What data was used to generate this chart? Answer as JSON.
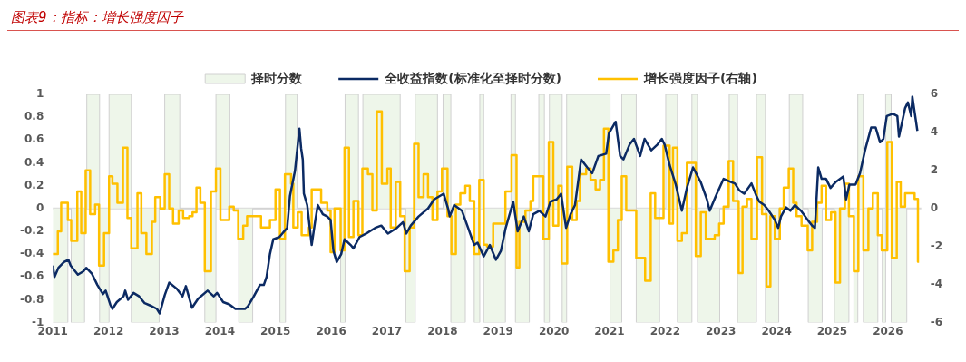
{
  "chart_data": {
    "type": "line",
    "title": "图表9：指标：增长强度因子",
    "xlim": [
      2011,
      2026.6
    ],
    "xticks": [
      2011,
      2012,
      2013,
      2014,
      2015,
      2016,
      2017,
      2018,
      2019,
      2020,
      2021,
      2022,
      2023,
      2024,
      2025,
      2026
    ],
    "ylim": [
      -1,
      1
    ],
    "yticks": [
      -1,
      -0.8,
      -0.6,
      -0.4,
      -0.2,
      0,
      0.2,
      0.4,
      0.6,
      0.8,
      1
    ],
    "y2lim": [
      -6,
      6
    ],
    "y2ticks": [
      -6,
      -4,
      -2,
      0,
      2,
      4,
      6
    ],
    "grid": false,
    "legend": "top",
    "ref_lines": [
      {
        "axis": "y",
        "value": 0,
        "color": "#d9d9d9"
      }
    ],
    "series": [
      {
        "name": "择时分数",
        "type": "area",
        "color": "#eef6ea",
        "x": [
          2011.0,
          2011.27,
          2011.33,
          2011.57,
          2011.61,
          2011.84,
          2012.01,
          2012.41,
          2012.91,
          2013.01,
          2013.28,
          2013.73,
          2013.93,
          2014.18,
          2014.34,
          2014.59,
          2015.08,
          2015.18,
          2015.39,
          2016.17,
          2016.25,
          2016.49,
          2016.57,
          2017.24,
          2017.34,
          2017.51,
          2017.91,
          2018.01,
          2018.15,
          2018.41,
          2018.57,
          2018.67,
          2018.74,
          2019.13,
          2019.23,
          2019.31,
          2019.56,
          2019.73,
          2019.83,
          2019.92,
          2020.15,
          2020.23,
          2021.01,
          2021.22,
          2021.48,
          2021.9,
          2022.01,
          2022.22,
          2022.48,
          2022.58,
          2022.98,
          2023.15,
          2023.3,
          2023.64,
          2023.8,
          2024.04,
          2024.23,
          2024.47,
          2024.57,
          2024.82,
          2025.04,
          2025.3,
          2025.39,
          2025.46,
          2025.56,
          2025.82,
          2025.9,
          2025.96,
          2026.06,
          2026.34
        ],
        "values": [
          -1,
          0,
          -1,
          0,
          1,
          -1,
          1,
          -1,
          0,
          1,
          0,
          -1,
          1,
          0,
          -1,
          0,
          -1,
          1,
          0,
          -1,
          1,
          0,
          1,
          0,
          -1,
          1,
          0,
          1,
          -1,
          0,
          -1,
          1,
          -1,
          0,
          1,
          -1,
          0,
          1,
          -1,
          1,
          -1,
          1,
          -1,
          1,
          -1,
          0,
          1,
          -1,
          1,
          -1,
          0,
          1,
          -1,
          1,
          -1,
          0,
          1,
          0,
          -1,
          0,
          -1,
          0,
          -1,
          1,
          -1,
          0,
          -1,
          1,
          -1,
          0
        ]
      },
      {
        "name": "全收益指数(标准化至择时分数)",
        "type": "line",
        "color": "#0b2a63",
        "x": [
          2011.0,
          2011.03,
          2011.1,
          2011.2,
          2011.28,
          2011.32,
          2011.45,
          2011.55,
          2011.6,
          2011.7,
          2011.8,
          2011.9,
          2011.95,
          2012.03,
          2012.07,
          2012.15,
          2012.27,
          2012.3,
          2012.35,
          2012.45,
          2012.55,
          2012.65,
          2012.75,
          2012.87,
          2012.92,
          2013.01,
          2013.09,
          2013.22,
          2013.33,
          2013.39,
          2013.47,
          2013.5,
          2013.61,
          2013.78,
          2013.89,
          2013.95,
          2014.06,
          2014.17,
          2014.28,
          2014.45,
          2014.5,
          2014.61,
          2014.72,
          2014.79,
          2014.84,
          2014.9,
          2014.96,
          2015.07,
          2015.21,
          2015.26,
          2015.35,
          2015.43,
          2015.46,
          2015.49,
          2015.51,
          2015.57,
          2015.65,
          2015.71,
          2015.76,
          2015.85,
          2015.93,
          2015.99,
          2016.04,
          2016.1,
          2016.18,
          2016.24,
          2016.35,
          2016.4,
          2016.51,
          2016.63,
          2016.79,
          2016.9,
          2017.02,
          2017.18,
          2017.29,
          2017.35,
          2017.43,
          2017.57,
          2017.74,
          2017.85,
          2018.02,
          2018.1,
          2018.13,
          2018.21,
          2018.35,
          2018.46,
          2018.57,
          2018.63,
          2018.74,
          2018.85,
          2018.96,
          2019.05,
          2019.13,
          2019.27,
          2019.35,
          2019.46,
          2019.55,
          2019.63,
          2019.74,
          2019.85,
          2019.94,
          2020.05,
          2020.13,
          2020.22,
          2020.3,
          2020.38,
          2020.49,
          2020.6,
          2020.69,
          2020.8,
          2020.94,
          2020.99,
          2021.11,
          2021.19,
          2021.25,
          2021.36,
          2021.44,
          2021.55,
          2021.63,
          2021.75,
          2021.86,
          2021.94,
          2021.99,
          2022.08,
          2022.19,
          2022.3,
          2022.39,
          2022.5,
          2022.64,
          2022.75,
          2022.8,
          2022.91,
          2023.05,
          2023.19,
          2023.25,
          2023.33,
          2023.42,
          2023.55,
          2023.64,
          2023.69,
          2023.78,
          2023.86,
          2023.97,
          2024.03,
          2024.08,
          2024.17,
          2024.25,
          2024.33,
          2024.44,
          2024.56,
          2024.64,
          2024.69,
          2024.75,
          2024.81,
          2024.89,
          2024.97,
          2025.06,
          2025.2,
          2025.25,
          2025.31,
          2025.42,
          2025.5,
          2025.59,
          2025.7,
          2025.78,
          2025.86,
          2025.92,
          2025.98,
          2026.09,
          2026.17,
          2026.2,
          2026.31,
          2026.36,
          2026.42,
          2026.44,
          2026.47,
          2026.5,
          2026.53
        ],
        "values": [
          -0.5,
          -0.6,
          -0.52,
          -0.47,
          -0.45,
          -0.5,
          -0.58,
          -0.55,
          -0.52,
          -0.57,
          -0.67,
          -0.75,
          -0.72,
          -0.84,
          -0.88,
          -0.82,
          -0.77,
          -0.72,
          -0.8,
          -0.74,
          -0.77,
          -0.83,
          -0.85,
          -0.88,
          -0.92,
          -0.76,
          -0.65,
          -0.7,
          -0.77,
          -0.68,
          -0.82,
          -0.87,
          -0.79,
          -0.72,
          -0.77,
          -0.74,
          -0.82,
          -0.84,
          -0.88,
          -0.88,
          -0.86,
          -0.77,
          -0.67,
          -0.67,
          -0.6,
          -0.4,
          -0.27,
          -0.25,
          -0.17,
          0.11,
          0.33,
          0.7,
          0.53,
          0.43,
          0.13,
          0.03,
          -0.32,
          -0.12,
          0.03,
          -0.05,
          -0.07,
          -0.1,
          -0.37,
          -0.47,
          -0.4,
          -0.27,
          -0.32,
          -0.35,
          -0.25,
          -0.22,
          -0.17,
          -0.15,
          -0.22,
          -0.17,
          -0.12,
          -0.22,
          -0.15,
          -0.07,
          0.0,
          0.08,
          0.13,
          0.0,
          -0.07,
          0.03,
          -0.02,
          -0.17,
          -0.32,
          -0.3,
          -0.42,
          -0.32,
          -0.45,
          -0.37,
          -0.18,
          0.06,
          -0.2,
          -0.07,
          -0.2,
          -0.05,
          -0.02,
          -0.07,
          0.06,
          0.08,
          0.13,
          -0.17,
          -0.05,
          0.03,
          0.43,
          0.36,
          0.31,
          0.46,
          0.48,
          0.66,
          0.76,
          0.46,
          0.43,
          0.56,
          0.61,
          0.46,
          0.61,
          0.51,
          0.56,
          0.61,
          0.56,
          0.38,
          0.21,
          -0.02,
          0.18,
          0.36,
          0.23,
          0.08,
          -0.02,
          0.11,
          0.26,
          0.23,
          0.22,
          0.16,
          0.13,
          0.22,
          0.11,
          0.06,
          0.03,
          -0.02,
          -0.1,
          -0.17,
          -0.07,
          0.01,
          -0.02,
          0.03,
          -0.02,
          -0.1,
          -0.15,
          -0.17,
          0.36,
          0.26,
          0.26,
          0.18,
          0.23,
          0.28,
          0.08,
          0.21,
          0.21,
          0.31,
          0.51,
          0.71,
          0.71,
          0.58,
          0.61,
          0.81,
          0.83,
          0.81,
          0.63,
          0.88,
          0.93,
          0.81,
          0.98,
          0.88,
          0.78,
          0.68
        ]
      },
      {
        "name": "增长强度因子(右轴)",
        "type": "step",
        "axis": "y2",
        "color": "#ffc000",
        "x": [
          2011.0,
          2011.09,
          2011.15,
          2011.27,
          2011.33,
          2011.44,
          2011.51,
          2011.59,
          2011.67,
          2011.76,
          2011.83,
          2011.92,
          2012.01,
          2012.07,
          2012.16,
          2012.26,
          2012.34,
          2012.41,
          2012.52,
          2012.59,
          2012.68,
          2012.78,
          2012.84,
          2012.93,
          2013.01,
          2013.09,
          2013.16,
          2013.26,
          2013.34,
          2013.45,
          2013.51,
          2013.58,
          2013.65,
          2013.73,
          2013.84,
          2013.93,
          2014.01,
          2014.17,
          2014.25,
          2014.33,
          2014.42,
          2014.49,
          2014.74,
          2014.9,
          2015.0,
          2015.08,
          2015.17,
          2015.28,
          2015.32,
          2015.4,
          2015.47,
          2015.6,
          2015.65,
          2015.82,
          2015.93,
          2015.99,
          2016.06,
          2016.17,
          2016.24,
          2016.32,
          2016.4,
          2016.49,
          2016.56,
          2016.66,
          2016.74,
          2016.82,
          2016.91,
          2017.01,
          2017.07,
          2017.16,
          2017.24,
          2017.32,
          2017.41,
          2017.49,
          2017.57,
          2017.66,
          2017.74,
          2017.82,
          2017.91,
          2017.99,
          2018.09,
          2018.16,
          2018.24,
          2018.32,
          2018.41,
          2018.49,
          2018.57,
          2018.66,
          2018.74,
          2018.8,
          2018.91,
          2019.13,
          2019.24,
          2019.33,
          2019.38,
          2019.49,
          2019.58,
          2019.63,
          2019.81,
          2019.91,
          2019.99,
          2020.08,
          2020.14,
          2020.24,
          2020.33,
          2020.41,
          2020.47,
          2020.58,
          2020.66,
          2020.75,
          2020.83,
          2020.9,
          2020.98,
          2021.07,
          2021.15,
          2021.22,
          2021.3,
          2021.48,
          2021.64,
          2021.74,
          2021.82,
          2021.97,
          2022.08,
          2022.14,
          2022.22,
          2022.3,
          2022.39,
          2022.55,
          2022.64,
          2022.73,
          2022.89,
          2022.97,
          2023.05,
          2023.14,
          2023.22,
          2023.32,
          2023.39,
          2023.47,
          2023.55,
          2023.65,
          2023.74,
          2023.82,
          2023.89,
          2023.97,
          2024.06,
          2024.13,
          2024.22,
          2024.3,
          2024.36,
          2024.45,
          2024.56,
          2024.64,
          2024.73,
          2024.81,
          2024.89,
          2024.98,
          2025.06,
          2025.14,
          2025.23,
          2025.3,
          2025.39,
          2025.47,
          2025.56,
          2025.65,
          2025.73,
          2025.82,
          2025.89,
          2025.99,
          2026.07,
          2026.16,
          2026.23,
          2026.31,
          2026.48,
          2026.54,
          2026.56
        ],
        "values": [
          -2.4,
          -1.2,
          0.3,
          -0.6,
          -1.7,
          0.9,
          -1.3,
          2.0,
          -0.3,
          0.2,
          -3.0,
          -1.3,
          1.7,
          1.3,
          0.3,
          3.2,
          -0.5,
          -2.1,
          0.8,
          -1.3,
          -2.4,
          -0.7,
          0.6,
          0.0,
          1.8,
          0.0,
          -0.8,
          -0.1,
          -0.5,
          -0.4,
          -0.2,
          1.1,
          0.3,
          -3.3,
          0.9,
          2.1,
          -0.6,
          0.1,
          -0.1,
          -1.6,
          -0.9,
          -0.4,
          -1.0,
          -0.6,
          1.0,
          -1.6,
          1.8,
          1.3,
          -1.0,
          -0.2,
          -1.4,
          -1.0,
          1.0,
          0.3,
          -0.1,
          -2.3,
          0.0,
          -2.2,
          3.2,
          -1.5,
          0.4,
          -1.4,
          2.1,
          1.8,
          -0.1,
          5.1,
          1.3,
          2.1,
          -1.0,
          1.4,
          -0.4,
          -3.3,
          -1.0,
          3.4,
          0.6,
          1.8,
          0.6,
          -0.6,
          0.9,
          2.1,
          -0.4,
          -2.4,
          0.2,
          0.8,
          1.2,
          0.4,
          -2.4,
          1.5,
          -1.9,
          -2.0,
          -0.8,
          0.9,
          2.8,
          -3.1,
          -0.7,
          -0.1,
          0.4,
          1.7,
          -1.6,
          3.5,
          -0.9,
          1.2,
          -2.9,
          2.2,
          -0.6,
          0.4,
          1.8,
          2.1,
          1.5,
          1.0,
          1.5,
          4.2,
          -2.8,
          -2.2,
          -0.6,
          1.7,
          -0.1,
          -2.6,
          -3.8,
          0.8,
          -0.5,
          3.3,
          -0.8,
          3.2,
          -1.7,
          -1.3,
          2.4,
          -2.5,
          -0.2,
          -1.6,
          -1.4,
          -0.8,
          0.1,
          2.5,
          0.4,
          -3.4,
          0.1,
          0.5,
          -1.6,
          2.7,
          -0.3,
          -4.1,
          -0.4,
          -1.6,
          0.0,
          1.1,
          2.1,
          0.3,
          -0.4,
          -0.9,
          -2.2,
          -0.7,
          0.3,
          1.2,
          -0.6,
          -0.2,
          -3.9,
          0.0,
          1.3,
          -0.4,
          -3.3,
          1.7,
          -2.2,
          0.0,
          0.8,
          -1.4,
          -2.2,
          3.5,
          -2.6,
          1.4,
          0.1,
          0.8,
          0.5,
          -2.8,
          -2.8
        ]
      }
    ]
  }
}
